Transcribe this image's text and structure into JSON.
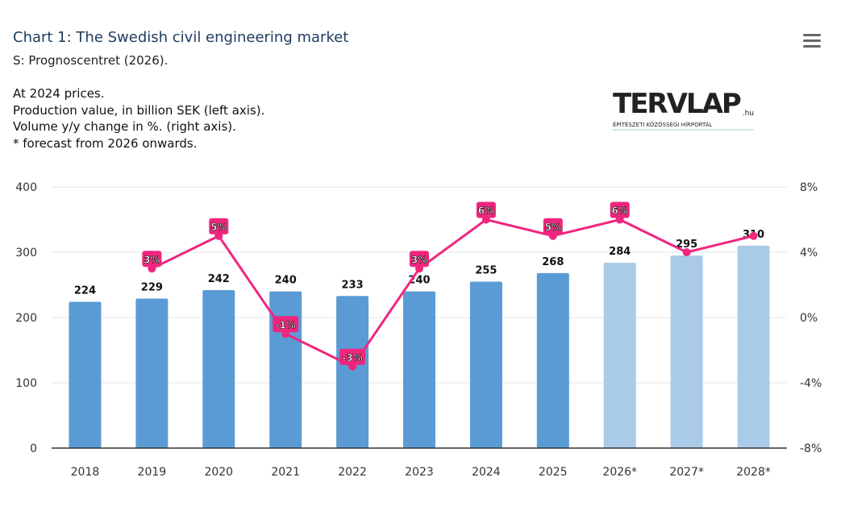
{
  "header": {
    "title": "Chart 1: The Swedish civil engineering market",
    "source": "S: Prognoscentret (2026).",
    "notes_plain": "At 2024 prices.",
    "note_prod_bold": "Production value, in billion SEK",
    "note_prod_rest": " (left axis).",
    "note_vol_bold": "Volume y/y change in %.",
    "note_vol_rest": " (right axis).",
    "note_forecast": "* forecast from 2026 onwards."
  },
  "menu_icon": "hamburger-menu-icon",
  "watermark": {
    "text": "TERVLAP",
    "suffix": ".hu",
    "tagline": "ÉPÍTÉSZETI KÖZÖSSÉGI HÍRPORTÁL"
  },
  "chart_data": {
    "type": "bar+line",
    "categories": [
      "2018",
      "2019",
      "2020",
      "2021",
      "2022",
      "2023",
      "2024",
      "2025",
      "2026*",
      "2027*",
      "2028*"
    ],
    "series": [
      {
        "name": "Production value, in billion SEK",
        "axis": "left",
        "type": "bar",
        "values": [
          224,
          229,
          242,
          240,
          233,
          240,
          255,
          268,
          284,
          295,
          310
        ],
        "forecast_from": "2026*",
        "color": "#5b9bd5",
        "forecast_color": "#a9cbe8"
      },
      {
        "name": "Volume y/y change in %",
        "axis": "right",
        "type": "line",
        "values": [
          null,
          3,
          5,
          -1,
          -3,
          3,
          6,
          5,
          6,
          4,
          5
        ],
        "labels": [
          null,
          "3%",
          "5%",
          "-1%",
          "-3%",
          "3%",
          "6%",
          "5%",
          "6%",
          null,
          null
        ],
        "color": "#f0267e"
      }
    ],
    "left_axis": {
      "ylim": [
        0,
        400
      ],
      "ticks": [
        "0",
        "100",
        "200",
        "300",
        "400"
      ]
    },
    "right_axis": {
      "ylim": [
        -8,
        8
      ],
      "ticks": [
        "-8%",
        "-4%",
        "0%",
        "4%",
        "8%"
      ]
    },
    "grid": true
  }
}
